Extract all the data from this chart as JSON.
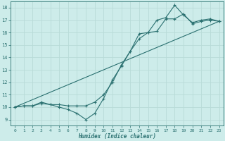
{
  "xlabel": "Humidex (Indice chaleur)",
  "xlim": [
    -0.5,
    23.5
  ],
  "ylim": [
    8.5,
    18.5
  ],
  "xticks": [
    0,
    1,
    2,
    3,
    4,
    5,
    6,
    7,
    8,
    9,
    10,
    11,
    12,
    13,
    14,
    15,
    16,
    17,
    18,
    19,
    20,
    21,
    22,
    23
  ],
  "yticks": [
    9,
    10,
    11,
    12,
    13,
    14,
    15,
    16,
    17,
    18
  ],
  "bg_color": "#cdecea",
  "line_color": "#2a7070",
  "grid_color": "#b8dbd8",
  "line1_x": [
    0,
    1,
    2,
    3,
    4,
    5,
    6,
    7,
    8,
    9,
    10,
    11,
    12,
    13,
    14,
    15,
    16,
    17,
    18,
    19,
    20,
    21,
    22,
    23
  ],
  "line1_y": [
    10.0,
    10.1,
    10.1,
    10.3,
    10.2,
    10.0,
    9.8,
    9.5,
    9.0,
    9.5,
    10.7,
    12.2,
    13.3,
    14.5,
    15.9,
    16.0,
    16.1,
    17.1,
    17.1,
    17.5,
    16.7,
    16.9,
    17.0,
    16.9
  ],
  "line2_x": [
    0,
    1,
    2,
    3,
    4,
    5,
    6,
    7,
    8,
    9,
    10,
    11,
    12,
    13,
    14,
    15,
    16,
    17,
    18,
    19,
    20,
    21,
    22,
    23
  ],
  "line2_y": [
    10.0,
    10.1,
    10.1,
    10.4,
    10.2,
    10.2,
    10.1,
    10.1,
    10.1,
    10.4,
    11.0,
    12.0,
    13.4,
    14.5,
    15.5,
    16.0,
    17.0,
    17.2,
    18.2,
    17.4,
    16.8,
    17.0,
    17.1,
    16.9
  ],
  "line3_x": [
    0,
    23
  ],
  "line3_y": [
    10.0,
    16.9
  ]
}
